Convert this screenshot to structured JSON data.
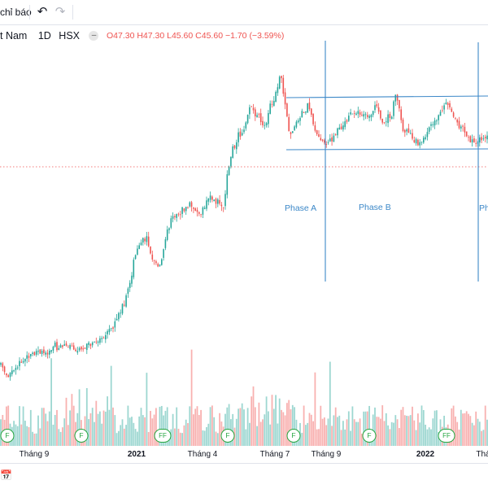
{
  "toolbar": {
    "indicators_label": "chỉ báo",
    "undo_icon": "undo-icon",
    "redo_icon": "redo-icon"
  },
  "legend": {
    "symbol": "t Nam",
    "timeframe": "1D",
    "exchange": "HSX",
    "open": "O47.30",
    "high": "H47.30",
    "low": "L45.60",
    "close": "C45.60",
    "change": "−1.70 (−3.59%)"
  },
  "annotations": {
    "phase_a": "Phase A",
    "phase_b": "Phase B",
    "phase_c": "Ph"
  },
  "x_axis_ticks": [
    {
      "label": "Tháng 9",
      "bold": false
    },
    {
      "label": "2021",
      "bold": true
    },
    {
      "label": "Tháng 4",
      "bold": false
    },
    {
      "label": "Tháng 7",
      "bold": false
    },
    {
      "label": "Tháng 9",
      "bold": false
    },
    {
      "label": "2022",
      "bold": true
    },
    {
      "label": "Thá",
      "bold": false
    }
  ],
  "event_markers": [
    "F",
    "F",
    "FF",
    "F",
    "F",
    "F",
    "FF"
  ],
  "colors": {
    "up": "#26a69a",
    "down": "#ef5350",
    "phase_lines": "#3c88c8",
    "price_line": "#ef5350",
    "marker": "#26a641"
  },
  "chart_data": {
    "type": "candlestick",
    "title": "",
    "note": "Daily candlestick with volume, accumulation range drawn between two horizontal lines",
    "range_lines": {
      "upper": "resistance",
      "lower": "support"
    }
  }
}
